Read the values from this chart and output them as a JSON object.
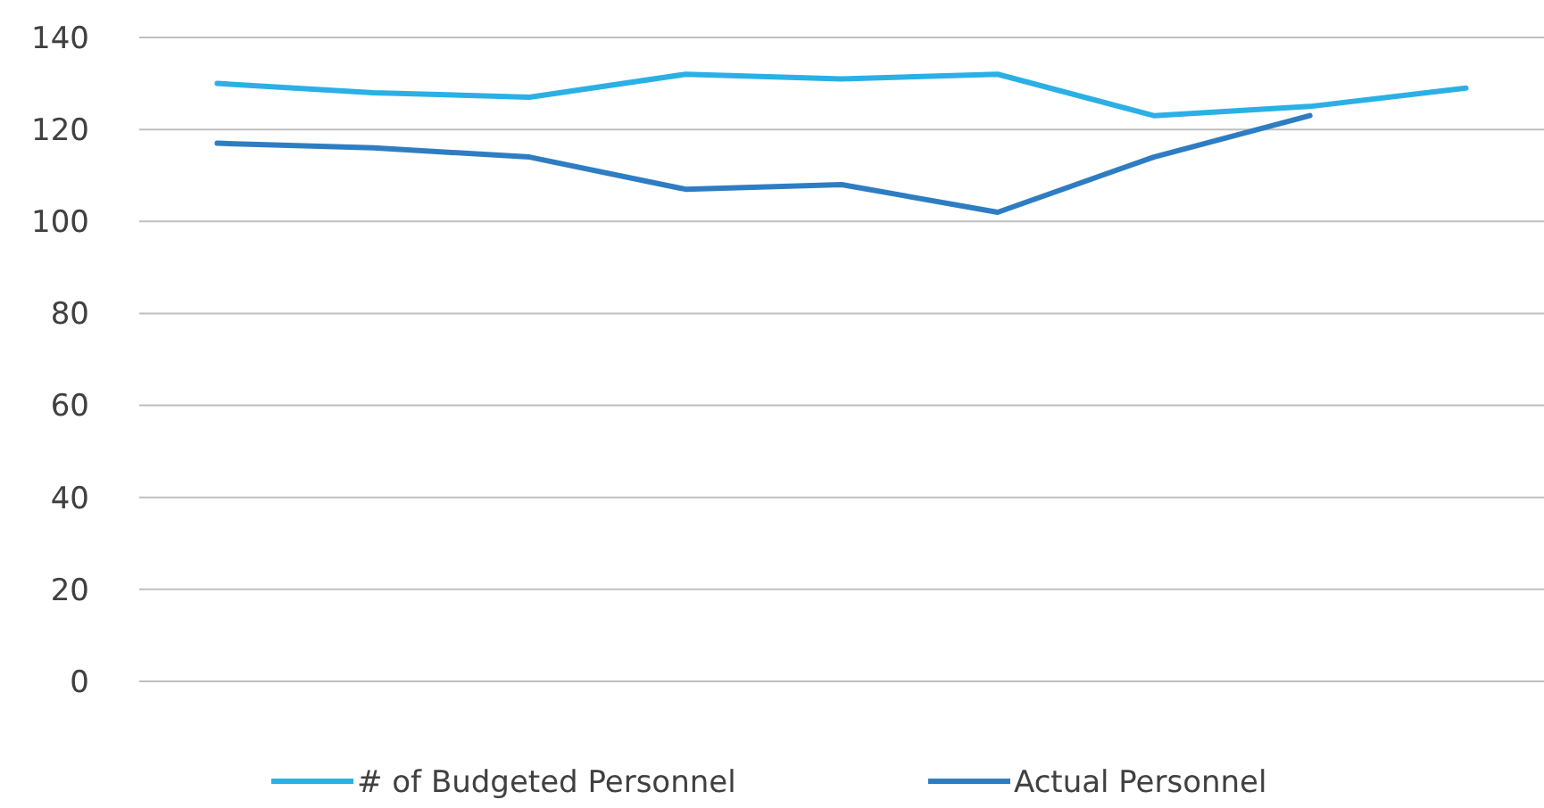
{
  "chart_data": {
    "type": "line",
    "categories": [
      null,
      null,
      null,
      null,
      null,
      null,
      null,
      null,
      null
    ],
    "series": [
      {
        "name": "# of Budgeted Personnel",
        "color": "#2bb0e6",
        "values": [
          130,
          128,
          127,
          132,
          131,
          132,
          123,
          125,
          129
        ]
      },
      {
        "name": "Actual Personnel",
        "color": "#2e7dc3",
        "values": [
          117,
          116,
          114,
          107,
          108,
          102,
          114,
          123,
          null
        ]
      }
    ],
    "ylim": [
      0,
      140
    ],
    "yticks": [
      0,
      20,
      40,
      60,
      80,
      100,
      120,
      140
    ],
    "grid": "y",
    "legend": "bottom",
    "marker": "none",
    "line_style": "solid"
  }
}
